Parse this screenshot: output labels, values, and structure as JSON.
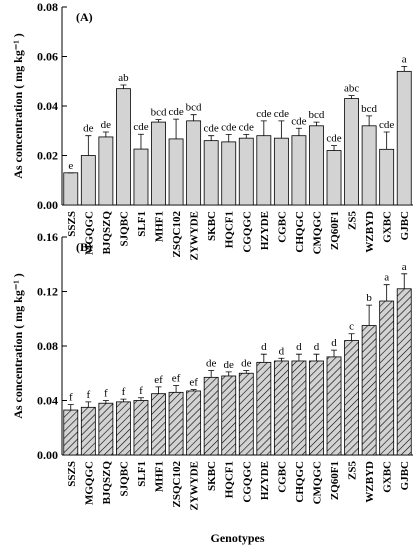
{
  "chart_data": [
    {
      "type": "bar",
      "panel_label": "(A)",
      "ylabel": "As concentration ( mg kg⁻¹ )",
      "categories": [
        "SSZS",
        "MGQGC",
        "BJQSZQ",
        "SJQBC",
        "SLF1",
        "MHF1",
        "ZSQC102",
        "ZYWYDE",
        "SKBC",
        "HQCF1",
        "CGQGC",
        "HZYDE",
        "CGBC",
        "CHQGC",
        "CMQGC",
        "ZQ60F1",
        "ZS5",
        "WZBYD",
        "GXBC",
        "GJBC"
      ],
      "values": [
        0.013,
        0.02,
        0.0275,
        0.047,
        0.0226,
        0.0335,
        0.0267,
        0.034,
        0.026,
        0.0255,
        0.027,
        0.028,
        0.027,
        0.028,
        0.032,
        0.022,
        0.043,
        0.032,
        0.0225,
        0.054
      ],
      "errors": [
        0,
        0.008,
        0.002,
        0.0015,
        0.006,
        0.001,
        0.008,
        0.0025,
        0.002,
        0.003,
        0.0015,
        0.006,
        0.007,
        0.003,
        0.0015,
        0.002,
        0.0012,
        0.004,
        0.007,
        0.002
      ],
      "letters": [
        "e",
        "de",
        "de",
        "ab",
        "cde",
        "bcd",
        "cde",
        "bcd",
        "cde",
        "cde",
        "cde",
        "cde",
        "cde",
        "cde",
        "bcd",
        "cde",
        "abc",
        "bcd",
        "cde",
        "a"
      ],
      "ylim": [
        0,
        0.08
      ],
      "yticks": [
        {
          "value": 0,
          "label": "0.00"
        },
        0.02,
        0.04,
        0.06,
        0.08
      ],
      "color": "#d3d3d3",
      "pattern": "solid"
    },
    {
      "type": "bar",
      "panel_label": "(B)",
      "ylabel": "As concentration ( mg kg⁻¹ )",
      "xlabel": "Genotypes",
      "categories": [
        "SSZS",
        "MGQGC",
        "BJQSZQ",
        "SJQBC",
        "SLF1",
        "MHF1",
        "ZSQC102",
        "ZYWYDE",
        "SKBC",
        "HQCF1",
        "CGQGC",
        "HZYDE",
        "CGBC",
        "CHQGC",
        "CMQGC",
        "ZQ60F1",
        "ZS5",
        "WZBYD",
        "GXBC",
        "GJBC"
      ],
      "values": [
        0.033,
        0.035,
        0.038,
        0.039,
        0.04,
        0.045,
        0.046,
        0.047,
        0.057,
        0.058,
        0.06,
        0.068,
        0.069,
        0.069,
        0.069,
        0.072,
        0.084,
        0.095,
        0.113,
        0.122
      ],
      "errors": [
        0.004,
        0.004,
        0.002,
        0.002,
        0.002,
        0.005,
        0.005,
        0.001,
        0.005,
        0.003,
        0.002,
        0.006,
        0.002,
        0.005,
        0.005,
        0.005,
        0.005,
        0.015,
        0.012,
        0.011
      ],
      "letters": [
        "f",
        "f",
        "f",
        "f",
        "f",
        "ef",
        "ef",
        "ef",
        "de",
        "de",
        "de",
        "d",
        "d",
        "d",
        "d",
        "d",
        "c",
        "b",
        "a",
        "a"
      ],
      "ylim": [
        0,
        0.16
      ],
      "yticks": [
        {
          "value": 0,
          "label": "0.00"
        },
        0.04,
        0.08,
        0.12,
        0.16
      ],
      "color": "#d3d3d3",
      "pattern": "hatch"
    }
  ]
}
